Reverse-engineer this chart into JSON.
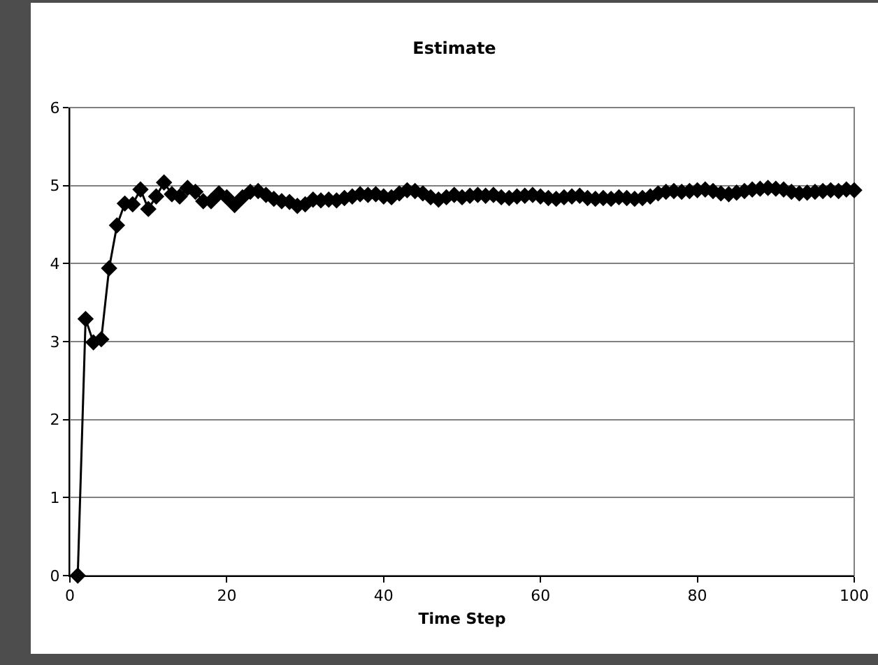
{
  "chart_data": {
    "type": "line",
    "title": "Estimate",
    "xlabel": "Time Step",
    "x": [
      1,
      2,
      3,
      4,
      5,
      6,
      7,
      8,
      9,
      10,
      11,
      12,
      13,
      14,
      15,
      16,
      17,
      18,
      19,
      20,
      21,
      22,
      23,
      24,
      25,
      26,
      27,
      28,
      29,
      30,
      31,
      32,
      33,
      34,
      35,
      36,
      37,
      38,
      39,
      40,
      41,
      42,
      43,
      44,
      45,
      46,
      47,
      48,
      49,
      50,
      51,
      52,
      53,
      54,
      55,
      56,
      57,
      58,
      59,
      60,
      61,
      62,
      63,
      64,
      65,
      66,
      67,
      68,
      69,
      70,
      71,
      72,
      73,
      74,
      75,
      76,
      77,
      78,
      79,
      80,
      81,
      82,
      83,
      84,
      85,
      86,
      87,
      88,
      89,
      90,
      91,
      92,
      93,
      94,
      95,
      96,
      97,
      98,
      99,
      100
    ],
    "series": [
      {
        "color": "#000000",
        "values": [
          0,
          3.29,
          2.99,
          3.03,
          3.94,
          4.49,
          4.77,
          4.76,
          4.95,
          4.7,
          4.86,
          5.04,
          4.89,
          4.86,
          4.97,
          4.92,
          4.8,
          4.8,
          4.9,
          4.85,
          4.75,
          4.85,
          4.92,
          4.93,
          4.88,
          4.83,
          4.8,
          4.79,
          4.74,
          4.76,
          4.82,
          4.81,
          4.82,
          4.81,
          4.84,
          4.86,
          4.89,
          4.88,
          4.89,
          4.86,
          4.85,
          4.9,
          4.94,
          4.93,
          4.9,
          4.85,
          4.82,
          4.85,
          4.88,
          4.85,
          4.87,
          4.88,
          4.87,
          4.88,
          4.85,
          4.84,
          4.86,
          4.87,
          4.88,
          4.86,
          4.84,
          4.83,
          4.85,
          4.86,
          4.87,
          4.84,
          4.83,
          4.84,
          4.83,
          4.85,
          4.84,
          4.83,
          4.84,
          4.86,
          4.9,
          4.92,
          4.93,
          4.92,
          4.93,
          4.94,
          4.95,
          4.93,
          4.9,
          4.89,
          4.91,
          4.93,
          4.95,
          4.96,
          4.97,
          4.96,
          4.95,
          4.92,
          4.9,
          4.91,
          4.92,
          4.93,
          4.94,
          4.93,
          4.95,
          4.94
        ]
      }
    ],
    "xlim": [
      0,
      100
    ],
    "xticks": [
      0,
      20,
      40,
      60,
      80,
      100
    ],
    "ylim": [
      0,
      6
    ],
    "yticks": [
      0,
      1,
      2,
      3,
      4,
      5,
      6
    ],
    "grid": "y",
    "marker": "diamond",
    "line_style": "solid",
    "legend": false
  }
}
